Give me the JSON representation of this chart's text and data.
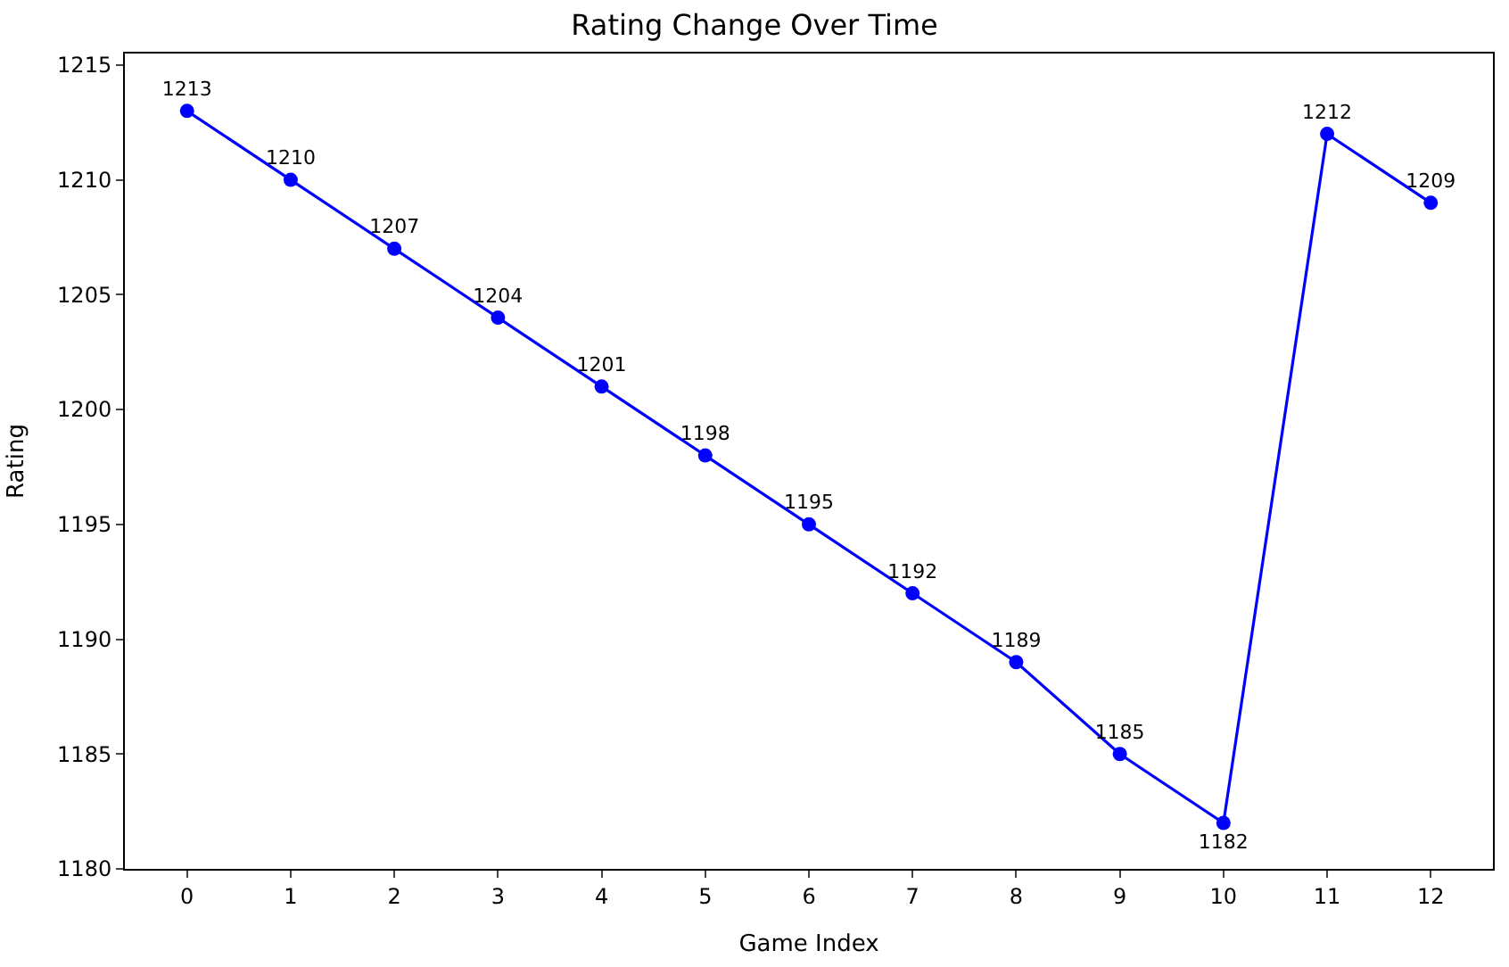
{
  "chart_data": {
    "type": "line",
    "title": "Rating Change Over Time",
    "xlabel": "Game Index",
    "ylabel": "Rating",
    "x": [
      0,
      1,
      2,
      3,
      4,
      5,
      6,
      7,
      8,
      9,
      10,
      11,
      12
    ],
    "series": [
      {
        "color": "#0000ff",
        "values": [
          1213,
          1210,
          1207,
          1204,
          1201,
          1198,
          1195,
          1192,
          1189,
          1185,
          1182,
          1212,
          1209
        ]
      }
    ],
    "xlim": [
      -0.6,
      12.6
    ],
    "xticks": [
      0,
      1,
      2,
      3,
      4,
      5,
      6,
      7,
      8,
      9,
      10,
      11,
      12
    ],
    "ylim": [
      1180,
      1215.5
    ],
    "yticks": [
      1180,
      1185,
      1190,
      1195,
      1200,
      1205,
      1210,
      1215
    ],
    "marker": "circle",
    "line_style": "solid",
    "data_labels": true
  }
}
